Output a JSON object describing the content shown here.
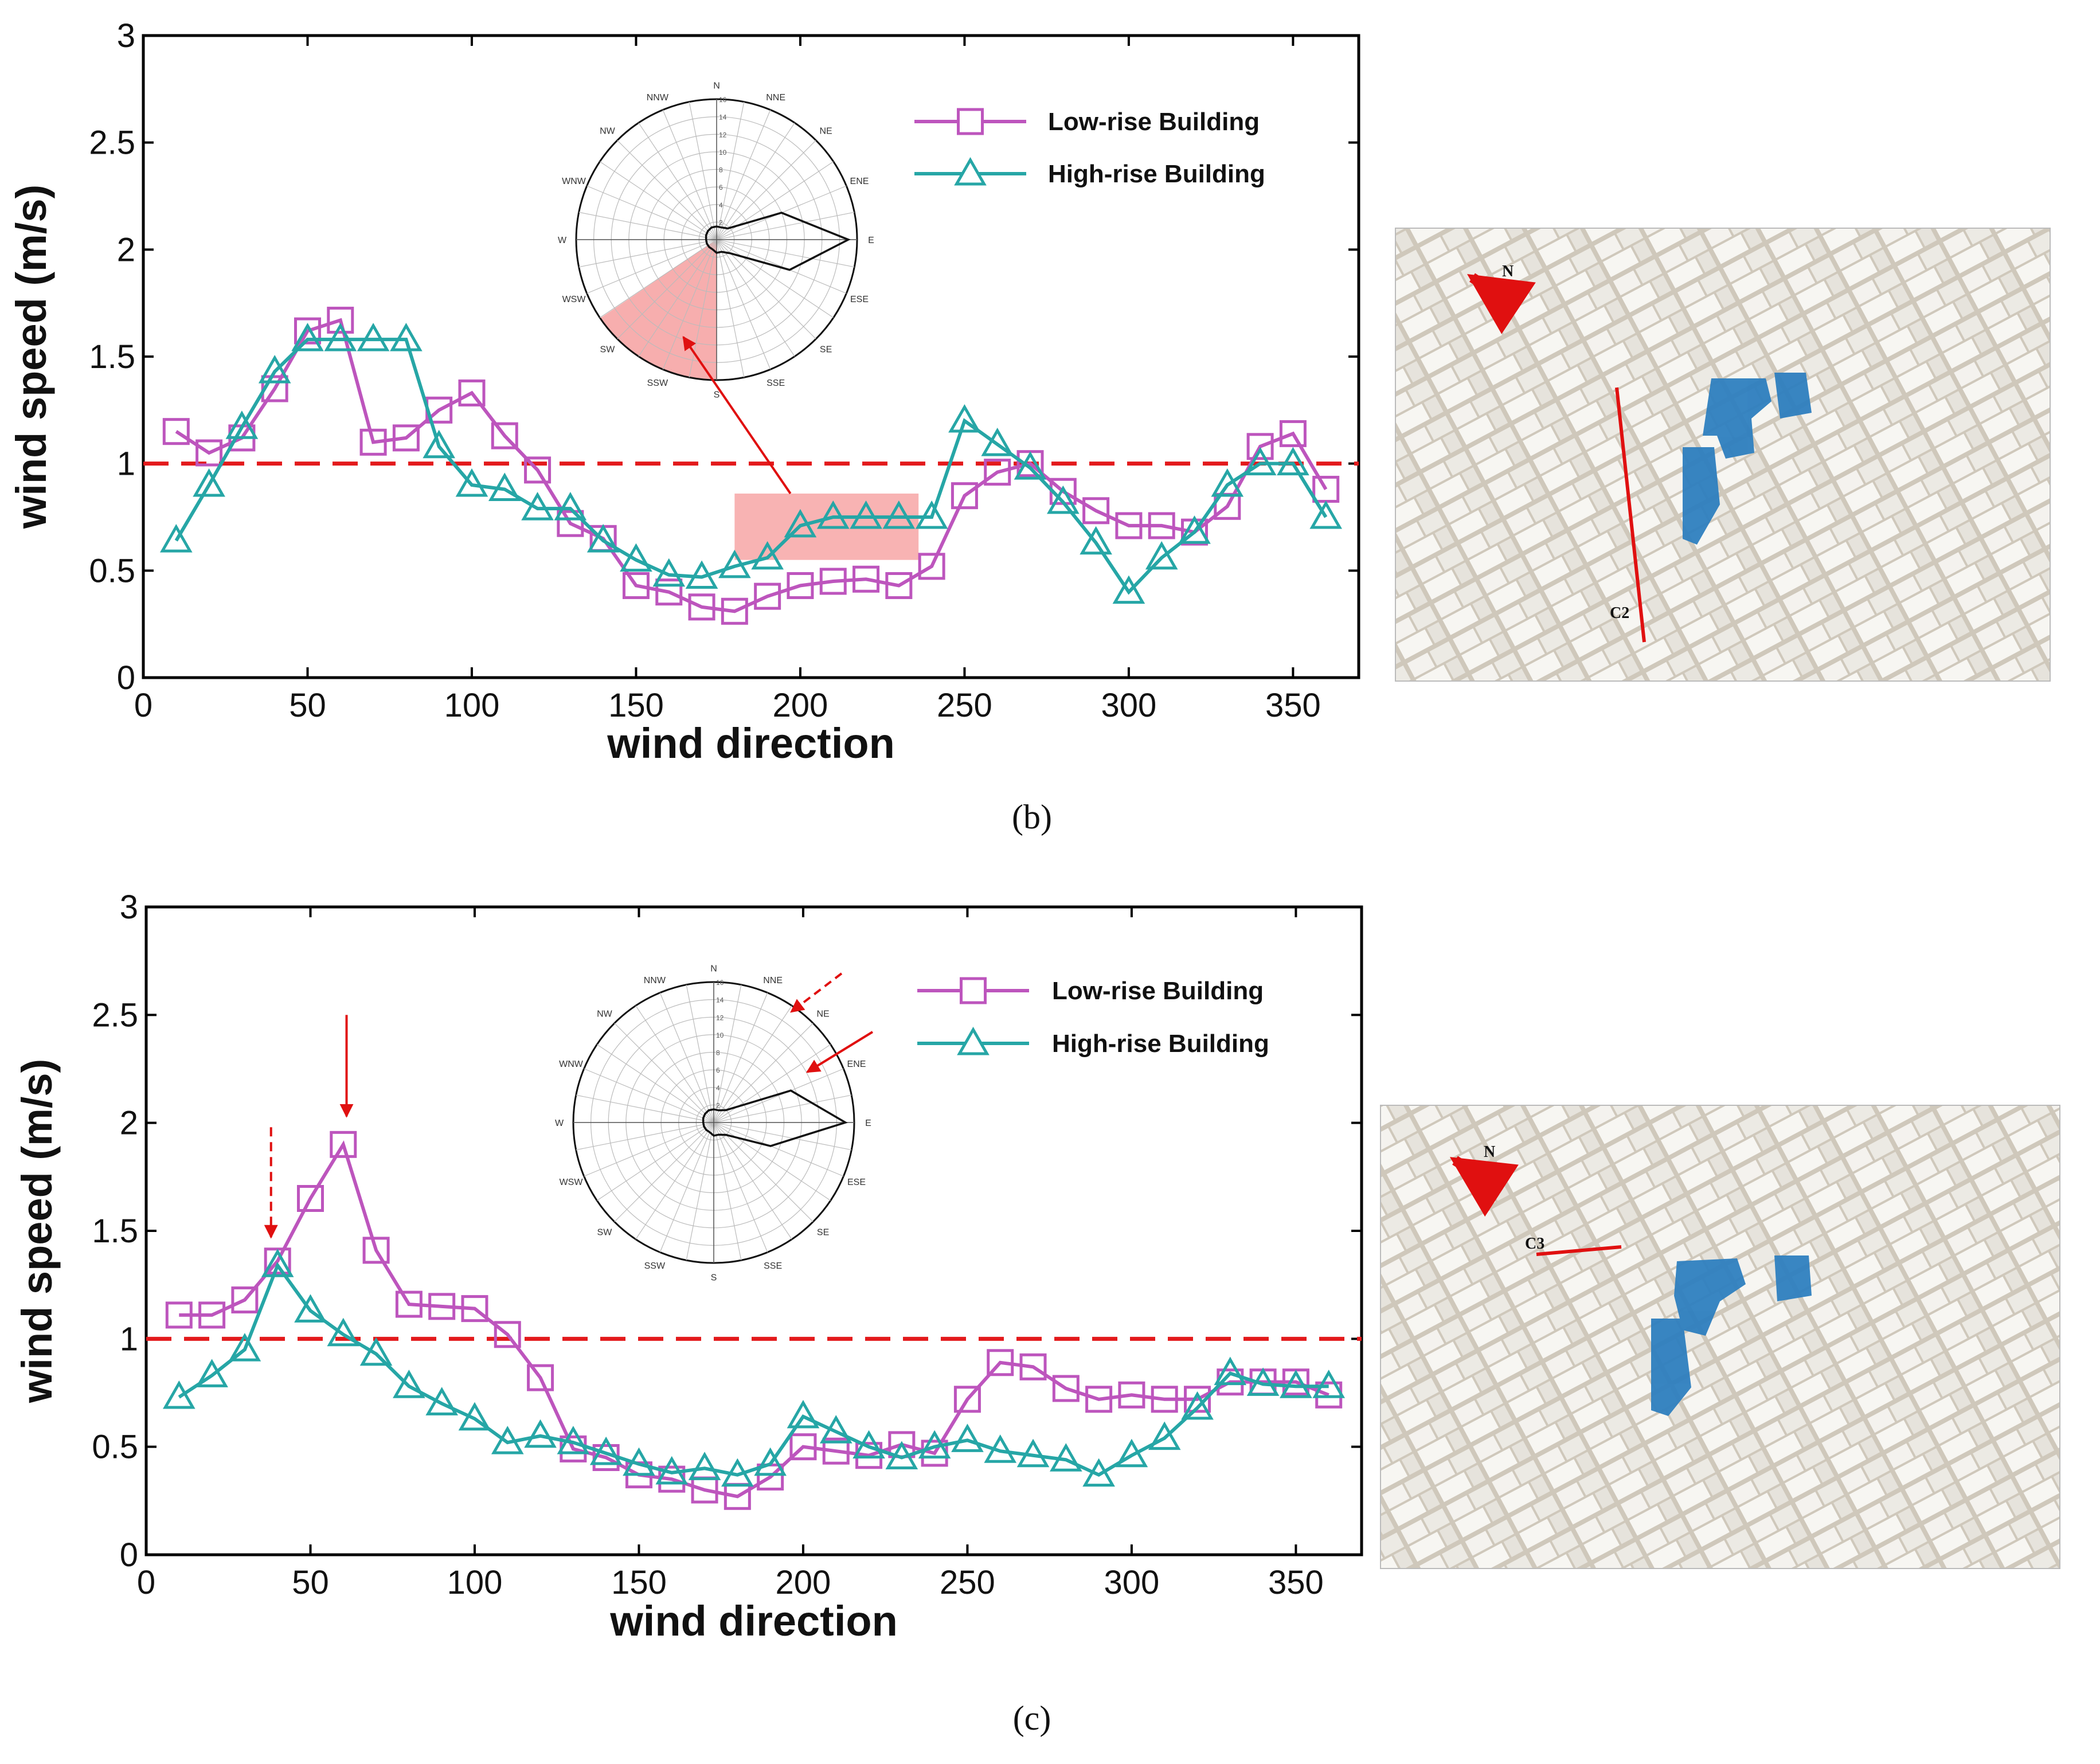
{
  "colors": {
    "low_rise": "#bd55bd",
    "high_rise": "#26a6a6",
    "threshold": "#e31a1c",
    "highlight": "#f6a0a0",
    "building_blue": "#2e7fbf",
    "arrow": "#e01010"
  },
  "chart_data": [
    {
      "type": "line",
      "panel": "(b)",
      "caption": "(b)",
      "xlabel": "wind direction",
      "ylabel": "wind speed (m/s)",
      "xlim": [
        0,
        370
      ],
      "ylim": [
        0,
        3
      ],
      "xticks": [
        "0",
        "50",
        "100",
        "150",
        "200",
        "250",
        "300",
        "350"
      ],
      "yticks": [
        "0",
        "0.5",
        "1",
        "1.5",
        "2",
        "2.5",
        "3"
      ],
      "threshold": 1,
      "x": [
        10,
        20,
        30,
        40,
        50,
        60,
        70,
        80,
        90,
        100,
        110,
        120,
        130,
        140,
        150,
        160,
        170,
        180,
        190,
        200,
        210,
        220,
        230,
        240,
        250,
        260,
        270,
        280,
        290,
        300,
        310,
        320,
        330,
        340,
        350,
        360
      ],
      "series": [
        {
          "name": "Low-rise Building",
          "marker": "square",
          "values": [
            1.15,
            1.05,
            1.12,
            1.35,
            1.62,
            1.67,
            1.1,
            1.12,
            1.25,
            1.33,
            1.13,
            0.97,
            0.72,
            0.65,
            0.43,
            0.4,
            0.33,
            0.31,
            0.38,
            0.43,
            0.45,
            0.46,
            0.43,
            0.52,
            0.85,
            0.96,
            1.0,
            0.87,
            0.78,
            0.71,
            0.71,
            0.68,
            0.8,
            1.08,
            1.14,
            0.88
          ]
        },
        {
          "name": "High-rise Building",
          "marker": "triangle",
          "values": [
            0.64,
            0.9,
            1.17,
            1.43,
            1.58,
            1.58,
            1.58,
            1.58,
            1.08,
            0.9,
            0.88,
            0.79,
            0.79,
            0.64,
            0.55,
            0.48,
            0.47,
            0.52,
            0.56,
            0.71,
            0.75,
            0.75,
            0.75,
            0.75,
            1.2,
            1.09,
            0.98,
            0.82,
            0.63,
            0.4,
            0.56,
            0.68,
            0.9,
            1.0,
            1.0,
            0.75
          ]
        }
      ],
      "highlight_range": [
        180,
        236
      ],
      "rose": {
        "labels": [
          "N",
          "NNE",
          "NE",
          "ENE",
          "E",
          "ESE",
          "SE",
          "SSE",
          "S",
          "SSW",
          "SW",
          "WSW",
          "W",
          "WNW",
          "NW",
          "NNW"
        ],
        "radial_ticks": [
          "2",
          "4",
          "6",
          "8",
          "10",
          "12",
          "14",
          "16"
        ],
        "values": [
          1.5,
          1.5,
          1.8,
          8,
          15,
          9,
          2.2,
          1.5,
          1.5,
          1.2,
          1.2,
          1.2,
          1.2,
          1.3,
          1.4,
          1.5
        ],
        "highlight_sector_deg": [
          180,
          236
        ]
      },
      "photo_label": "C2",
      "north_label": "N"
    },
    {
      "type": "line",
      "panel": "(c)",
      "caption": "(c)",
      "xlabel": "wind direction",
      "ylabel": "wind speed (m/s)",
      "xlim": [
        0,
        370
      ],
      "ylim": [
        0,
        3
      ],
      "xticks": [
        "0",
        "50",
        "100",
        "150",
        "200",
        "250",
        "300",
        "350"
      ],
      "yticks": [
        "0",
        "0.5",
        "1",
        "1.5",
        "2",
        "2.5",
        "3"
      ],
      "threshold": 1,
      "x": [
        10,
        20,
        30,
        40,
        50,
        60,
        70,
        80,
        90,
        100,
        110,
        120,
        130,
        140,
        150,
        160,
        170,
        180,
        190,
        200,
        210,
        220,
        230,
        240,
        250,
        260,
        270,
        280,
        290,
        300,
        310,
        320,
        330,
        340,
        350,
        360
      ],
      "series": [
        {
          "name": "Low-rise Building",
          "marker": "square",
          "values": [
            1.11,
            1.11,
            1.18,
            1.36,
            1.65,
            1.9,
            1.41,
            1.16,
            1.15,
            1.14,
            1.02,
            0.82,
            0.49,
            0.45,
            0.37,
            0.35,
            0.3,
            0.27,
            0.36,
            0.5,
            0.48,
            0.46,
            0.51,
            0.47,
            0.72,
            0.89,
            0.87,
            0.77,
            0.72,
            0.74,
            0.72,
            0.72,
            0.8,
            0.8,
            0.8,
            0.74
          ]
        },
        {
          "name": "High-rise Building",
          "marker": "triangle",
          "values": [
            0.73,
            0.83,
            0.95,
            1.34,
            1.13,
            1.02,
            0.93,
            0.78,
            0.7,
            0.63,
            0.52,
            0.55,
            0.52,
            0.47,
            0.42,
            0.38,
            0.4,
            0.37,
            0.42,
            0.64,
            0.57,
            0.5,
            0.45,
            0.5,
            0.53,
            0.48,
            0.46,
            0.44,
            0.37,
            0.46,
            0.54,
            0.68,
            0.84,
            0.79,
            0.78,
            0.78
          ]
        }
      ],
      "rose": {
        "labels": [
          "N",
          "NNE",
          "NE",
          "ENE",
          "E",
          "ESE",
          "SE",
          "SSE",
          "S",
          "SSW",
          "SW",
          "WSW",
          "W",
          "WNW",
          "NW",
          "NNW"
        ],
        "radial_ticks": [
          "2",
          "4",
          "6",
          "8",
          "10",
          "12",
          "14",
          "16"
        ],
        "values": [
          1.5,
          1.5,
          2,
          9.5,
          15,
          7,
          2,
          1.5,
          1.5,
          1.2,
          1.2,
          1.2,
          1.2,
          1.3,
          1.4,
          1.5
        ],
        "arrow_angles_deg": [
          40,
          60
        ]
      },
      "annotation_arrows_x": [
        38,
        61
      ],
      "photo_label": "C3",
      "north_label": "N"
    }
  ]
}
